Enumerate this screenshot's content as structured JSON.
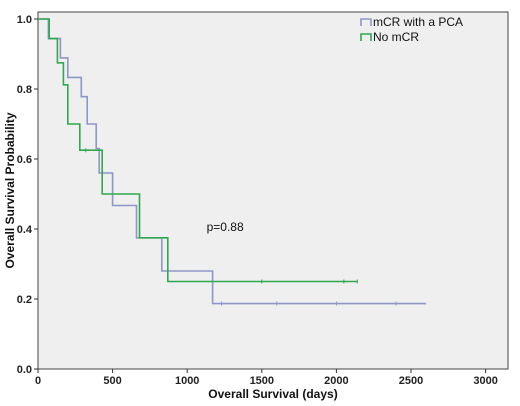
{
  "chart_data": {
    "type": "line",
    "step": true,
    "xlabel": "Overall Survival (days)",
    "ylabel": "Overall Survival Probability",
    "xlim": [
      0,
      3150
    ],
    "ylim": [
      0,
      1.02
    ],
    "xticks": [
      0,
      500,
      1000,
      1500,
      2000,
      2500,
      3000
    ],
    "yticks": [
      0.0,
      0.2,
      0.4,
      0.6,
      0.8,
      1.0
    ],
    "ytick_labels": [
      "0.0",
      "0.2",
      "0.4",
      "0.6",
      "0.8",
      "1.0"
    ],
    "grid": false,
    "legend_position": "top-right",
    "plot_background": "#efefef",
    "annotation": {
      "text": "p=0.88",
      "x": 1130,
      "y": 0.395
    },
    "series": [
      {
        "name": "mCR with a PCA",
        "color": "#8f96c9",
        "points": [
          [
            0,
            1.0
          ],
          [
            70,
            1.0
          ],
          [
            70,
            0.944
          ],
          [
            150,
            0.944
          ],
          [
            150,
            0.889
          ],
          [
            200,
            0.889
          ],
          [
            200,
            0.833
          ],
          [
            290,
            0.833
          ],
          [
            290,
            0.778
          ],
          [
            330,
            0.778
          ],
          [
            330,
            0.7
          ],
          [
            390,
            0.7
          ],
          [
            390,
            0.63
          ],
          [
            410,
            0.63
          ],
          [
            410,
            0.56
          ],
          [
            500,
            0.56
          ],
          [
            500,
            0.467
          ],
          [
            660,
            0.467
          ],
          [
            660,
            0.375
          ],
          [
            830,
            0.375
          ],
          [
            830,
            0.28
          ],
          [
            1170,
            0.28
          ],
          [
            1170,
            0.187
          ],
          [
            2600,
            0.187
          ]
        ],
        "censor_x": [
          1230,
          1600,
          2000,
          2400
        ]
      },
      {
        "name": "No mCR",
        "color": "#2fa84f",
        "points": [
          [
            0,
            1.0
          ],
          [
            75,
            1.0
          ],
          [
            75,
            0.944
          ],
          [
            130,
            0.944
          ],
          [
            130,
            0.875
          ],
          [
            170,
            0.875
          ],
          [
            170,
            0.812
          ],
          [
            200,
            0.812
          ],
          [
            200,
            0.7
          ],
          [
            280,
            0.7
          ],
          [
            280,
            0.625
          ],
          [
            430,
            0.625
          ],
          [
            430,
            0.5
          ],
          [
            680,
            0.5
          ],
          [
            680,
            0.375
          ],
          [
            870,
            0.375
          ],
          [
            870,
            0.25
          ],
          [
            2140,
            0.25
          ]
        ],
        "censor_x": [
          320,
          1500,
          2050,
          2140
        ]
      }
    ]
  }
}
